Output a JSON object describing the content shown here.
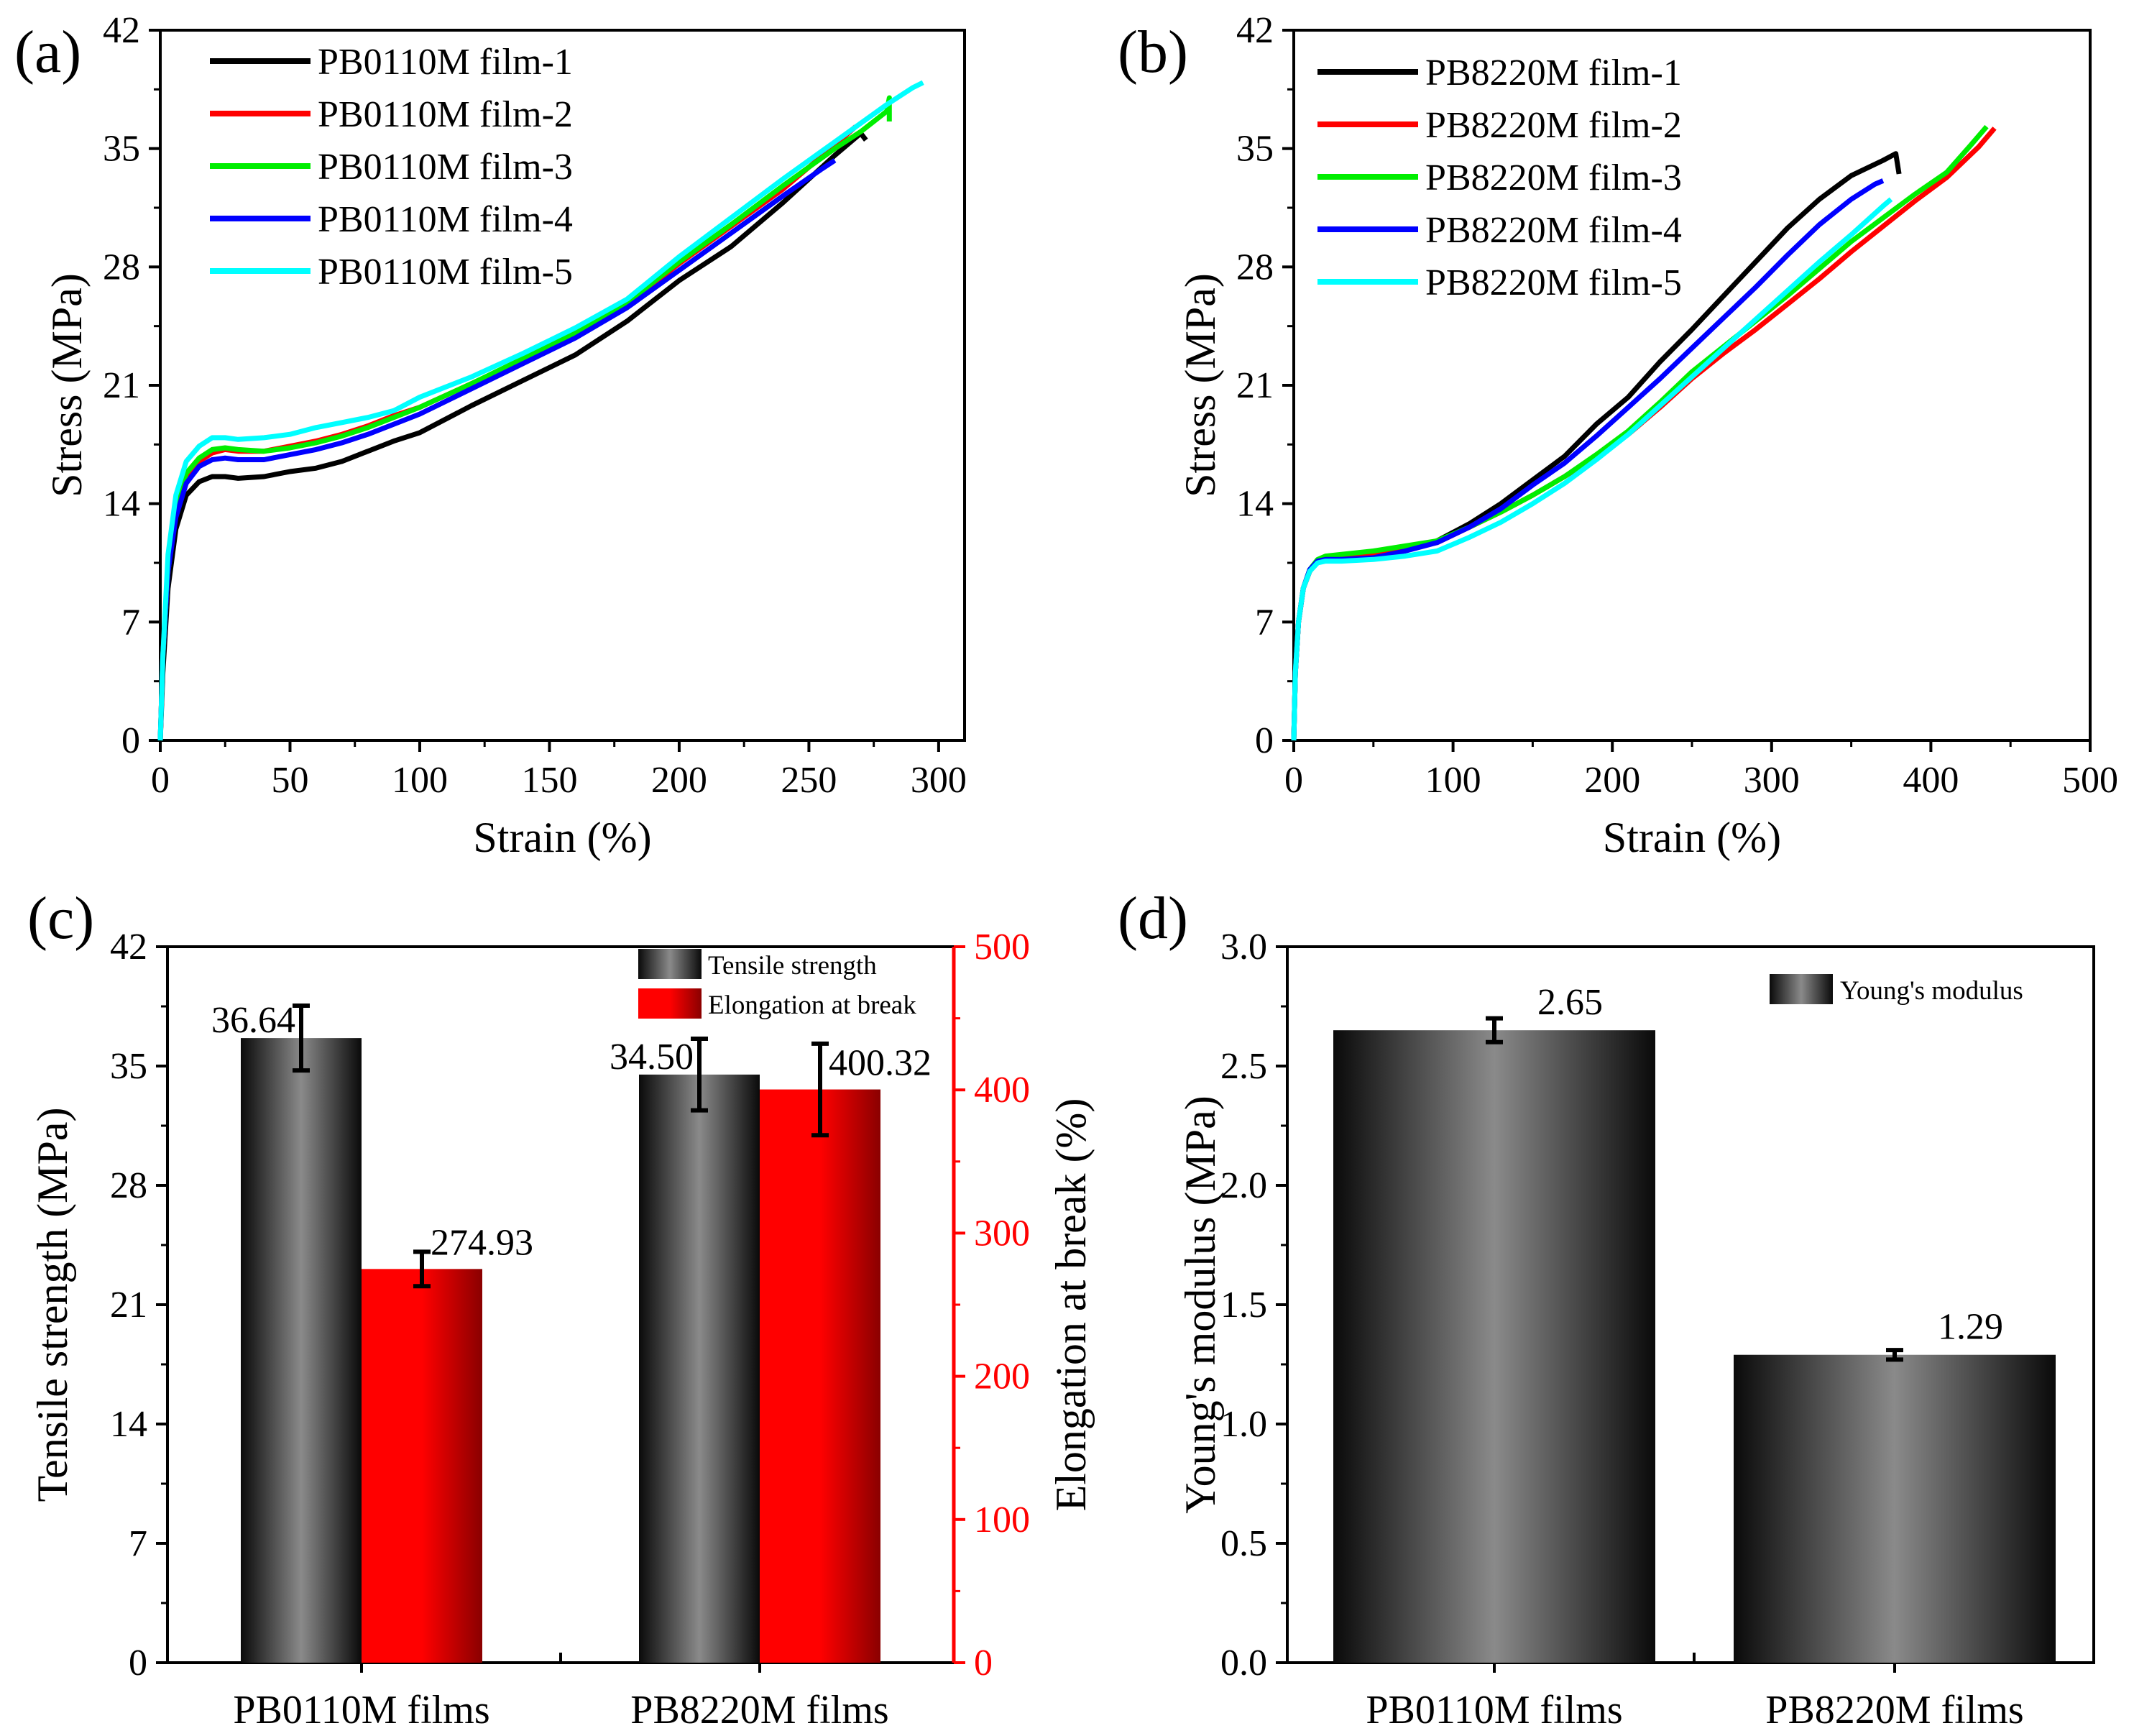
{
  "chart_data": [
    {
      "id": "a",
      "panel_label": "(a)",
      "type": "line",
      "xlabel": "Strain (%)",
      "ylabel": "Stress (MPa)",
      "xlim": [
        0,
        310
      ],
      "ylim": [
        0,
        42
      ],
      "xticks": [
        0,
        50,
        100,
        150,
        200,
        250,
        300
      ],
      "yticks": [
        0,
        7,
        14,
        21,
        28,
        35,
        42
      ],
      "grid": false,
      "legend_position": "top-left",
      "series": [
        {
          "name": "PB0110M film-1",
          "color": "#000000",
          "x": [
            0,
            1,
            3,
            6,
            10,
            15,
            20,
            25,
            30,
            40,
            50,
            60,
            70,
            80,
            90,
            100,
            120,
            140,
            160,
            180,
            200,
            220,
            240,
            260,
            270,
            272
          ],
          "y": [
            0,
            4,
            9,
            12.5,
            14.5,
            15.3,
            15.6,
            15.6,
            15.5,
            15.6,
            15.9,
            16.1,
            16.5,
            17.1,
            17.7,
            18.2,
            19.8,
            21.3,
            22.8,
            24.8,
            27.2,
            29.2,
            31.8,
            34.6,
            35.9,
            35.5
          ]
        },
        {
          "name": "PB0110M film-2",
          "color": "#ff0000",
          "x": [
            0,
            1,
            3,
            6,
            10,
            15,
            20,
            25,
            30,
            40,
            50,
            60,
            70,
            80,
            90,
            100,
            120,
            140,
            160,
            180,
            200,
            220,
            240,
            260,
            268
          ],
          "y": [
            0,
            5,
            10,
            13.5,
            15.5,
            16.5,
            17.0,
            17.2,
            17.1,
            17.1,
            17.4,
            17.7,
            18.1,
            18.6,
            19.2,
            19.7,
            21.1,
            22.5,
            24.0,
            25.8,
            28.2,
            30.4,
            32.6,
            35.2,
            36.3
          ]
        },
        {
          "name": "PB0110M film-3",
          "color": "#00ee00",
          "x": [
            0,
            1,
            3,
            6,
            10,
            15,
            20,
            25,
            30,
            40,
            50,
            60,
            70,
            80,
            90,
            100,
            120,
            140,
            160,
            180,
            200,
            220,
            240,
            260,
            270,
            280,
            281,
            281
          ],
          "y": [
            0,
            5,
            10,
            13.8,
            15.8,
            16.7,
            17.2,
            17.3,
            17.2,
            17.1,
            17.3,
            17.6,
            18.0,
            18.5,
            19.1,
            19.7,
            21.1,
            22.6,
            24.1,
            25.9,
            28.3,
            30.5,
            32.8,
            35.0,
            36.0,
            37.2,
            38.0,
            36.6
          ]
        },
        {
          "name": "PB0110M film-4",
          "color": "#0000ff",
          "x": [
            0,
            1,
            3,
            6,
            10,
            15,
            20,
            25,
            30,
            40,
            50,
            60,
            70,
            80,
            90,
            100,
            120,
            140,
            160,
            180,
            200,
            220,
            240,
            255,
            260
          ],
          "y": [
            0,
            5,
            10,
            13.2,
            15.2,
            16.2,
            16.6,
            16.7,
            16.6,
            16.6,
            16.9,
            17.2,
            17.6,
            18.1,
            18.7,
            19.3,
            20.8,
            22.3,
            23.8,
            25.6,
            27.8,
            30.0,
            32.2,
            33.8,
            34.3
          ]
        },
        {
          "name": "PB0110M film-5",
          "color": "#00ffff",
          "x": [
            0,
            1,
            3,
            6,
            10,
            15,
            20,
            25,
            30,
            40,
            50,
            60,
            70,
            80,
            90,
            100,
            120,
            140,
            160,
            180,
            200,
            220,
            240,
            260,
            280,
            290,
            294
          ],
          "y": [
            0,
            5,
            11,
            14.5,
            16.5,
            17.4,
            17.9,
            17.9,
            17.8,
            17.9,
            18.1,
            18.5,
            18.8,
            19.1,
            19.5,
            20.3,
            21.5,
            22.9,
            24.4,
            26.1,
            28.6,
            30.9,
            33.2,
            35.4,
            37.6,
            38.6,
            38.9
          ]
        }
      ]
    },
    {
      "id": "b",
      "panel_label": "(b)",
      "type": "line",
      "xlabel": "Strain (%)",
      "ylabel": "Stress (MPa)",
      "xlim": [
        0,
        500
      ],
      "ylim": [
        0,
        42
      ],
      "xticks": [
        0,
        100,
        200,
        300,
        400,
        500
      ],
      "yticks": [
        0,
        7,
        14,
        21,
        28,
        35,
        42
      ],
      "grid": false,
      "legend_position": "top-left",
      "series": [
        {
          "name": "PB8220M film-1",
          "color": "#000000",
          "x": [
            0,
            1,
            3,
            6,
            10,
            15,
            20,
            30,
            50,
            70,
            90,
            110,
            130,
            150,
            170,
            190,
            210,
            230,
            250,
            270,
            290,
            310,
            330,
            350,
            370,
            378,
            380
          ],
          "y": [
            0,
            4,
            7,
            9,
            10,
            10.6,
            10.8,
            10.9,
            11.0,
            11.3,
            11.8,
            12.8,
            14.0,
            15.4,
            16.8,
            18.7,
            20.3,
            22.4,
            24.3,
            26.3,
            28.3,
            30.3,
            32.0,
            33.4,
            34.3,
            34.7,
            33.5
          ]
        },
        {
          "name": "PB8220M film-2",
          "color": "#ff0000",
          "x": [
            0,
            1,
            3,
            6,
            10,
            15,
            20,
            30,
            50,
            70,
            90,
            110,
            130,
            150,
            170,
            190,
            210,
            230,
            250,
            270,
            290,
            310,
            330,
            350,
            370,
            390,
            410,
            430,
            440
          ],
          "y": [
            0,
            4,
            7,
            9,
            10,
            10.6,
            10.8,
            10.9,
            11.0,
            11.3,
            11.7,
            12.6,
            13.5,
            14.5,
            15.6,
            16.8,
            18.1,
            19.7,
            21.4,
            22.9,
            24.3,
            25.8,
            27.3,
            28.9,
            30.4,
            31.9,
            33.3,
            35.1,
            36.2
          ]
        },
        {
          "name": "PB8220M film-3",
          "color": "#00ee00",
          "x": [
            0,
            1,
            3,
            6,
            10,
            15,
            20,
            30,
            50,
            70,
            90,
            110,
            130,
            150,
            170,
            190,
            210,
            230,
            250,
            270,
            290,
            310,
            330,
            350,
            370,
            390,
            410,
            425,
            435
          ],
          "y": [
            0,
            4,
            7,
            9,
            10.1,
            10.7,
            10.9,
            11.0,
            11.2,
            11.5,
            11.8,
            12.6,
            13.5,
            14.5,
            15.6,
            16.9,
            18.3,
            20.0,
            21.8,
            23.3,
            24.8,
            26.3,
            27.9,
            29.5,
            30.9,
            32.3,
            33.6,
            35.2,
            36.3
          ]
        },
        {
          "name": "PB8220M film-4",
          "color": "#0000ff",
          "x": [
            0,
            1,
            3,
            6,
            10,
            15,
            20,
            30,
            50,
            70,
            90,
            110,
            130,
            150,
            170,
            190,
            210,
            230,
            250,
            270,
            290,
            310,
            330,
            350,
            365,
            370
          ],
          "y": [
            0,
            4,
            7,
            9,
            10.1,
            10.6,
            10.7,
            10.7,
            10.8,
            11.2,
            11.7,
            12.6,
            13.7,
            15.1,
            16.4,
            18.0,
            19.7,
            21.4,
            23.2,
            25.0,
            26.8,
            28.7,
            30.5,
            32.0,
            32.9,
            33.1
          ]
        },
        {
          "name": "PB8220M film-5",
          "color": "#00ffff",
          "x": [
            0,
            1,
            3,
            6,
            10,
            15,
            20,
            30,
            50,
            70,
            90,
            110,
            130,
            150,
            170,
            190,
            210,
            230,
            250,
            270,
            290,
            310,
            330,
            350,
            370,
            375
          ],
          "y": [
            0,
            4,
            7,
            9,
            10.0,
            10.5,
            10.6,
            10.6,
            10.7,
            10.9,
            11.2,
            12.0,
            12.9,
            14.0,
            15.2,
            16.6,
            18.1,
            19.8,
            21.5,
            23.2,
            24.9,
            26.6,
            28.3,
            29.9,
            31.6,
            32.0
          ]
        }
      ]
    },
    {
      "id": "c",
      "panel_label": "(c)",
      "type": "bar",
      "categories": [
        "PB0110M films",
        "PB8220M films"
      ],
      "ylabel": "Tensile strength (MPa)",
      "ylabel_right": "Elongation at break (%)",
      "ylim": [
        0,
        42
      ],
      "ylim_right": [
        0,
        500
      ],
      "yticks": [
        0,
        7,
        14,
        21,
        28,
        35,
        42
      ],
      "yticks_right": [
        0,
        100,
        200,
        300,
        400,
        500
      ],
      "right_axis_color": "#ff0000",
      "legend_position": "top-right",
      "series": [
        {
          "name": "Tensile strength",
          "axis": "left",
          "fill": "dark-gradient",
          "values": [
            36.64,
            34.5
          ],
          "errors": [
            1.9,
            2.1
          ],
          "labels": [
            "36.64",
            "34.50"
          ]
        },
        {
          "name": "Elongation at break",
          "axis": "right",
          "fill": "red-gradient",
          "values": [
            274.93,
            400.32
          ],
          "errors": [
            12,
            32
          ],
          "labels": [
            "274.93",
            "400.32"
          ]
        }
      ]
    },
    {
      "id": "d",
      "panel_label": "(d)",
      "type": "bar",
      "categories": [
        "PB0110M films",
        "PB8220M films"
      ],
      "ylabel": "Young's modulus (MPa)",
      "ylim": [
        0,
        3.0
      ],
      "yticks": [
        "0.0",
        "0.5",
        "1.0",
        "1.5",
        "2.0",
        "2.5",
        "3.0"
      ],
      "legend_position": "top-right",
      "series": [
        {
          "name": "Young's modulus",
          "values": [
            2.65,
            1.29
          ],
          "errors": [
            0.05,
            0.02
          ],
          "labels": [
            "2.65",
            "1.29"
          ]
        }
      ]
    }
  ]
}
